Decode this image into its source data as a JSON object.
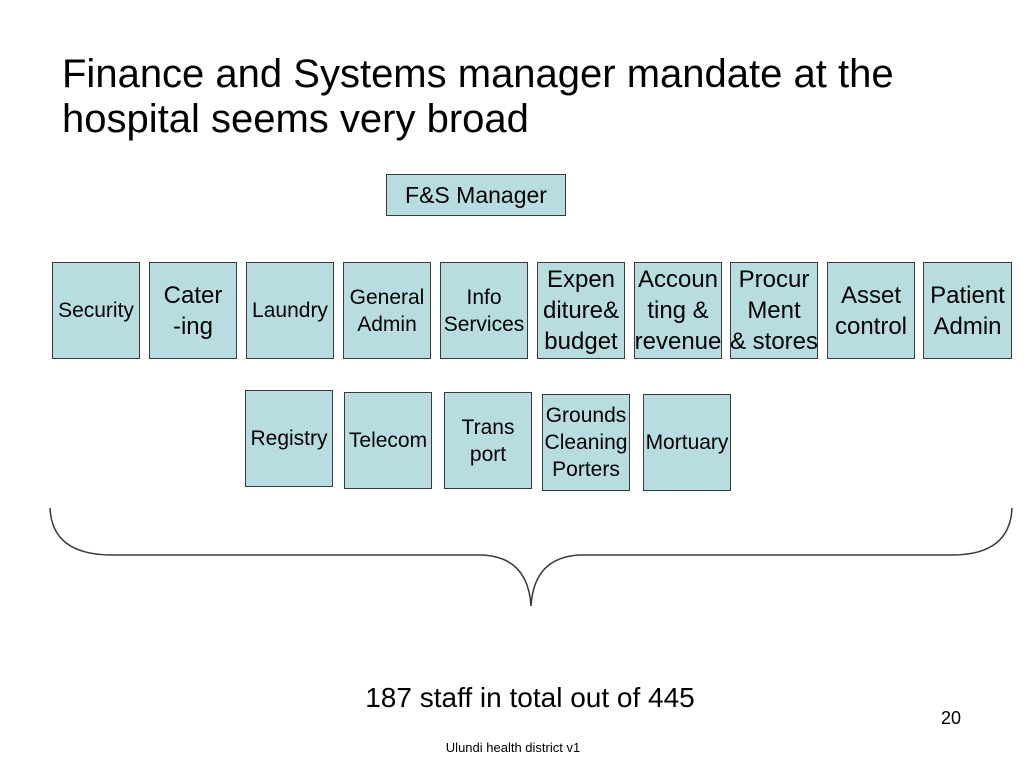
{
  "title": "Finance and Systems manager mandate at the hospital seems very broad",
  "manager": {
    "label": "F&S Manager"
  },
  "row1": [
    {
      "lines": [
        "Security"
      ]
    },
    {
      "lines": [
        "Cater",
        "-ing"
      ]
    },
    {
      "lines": [
        "Laundry"
      ]
    },
    {
      "lines": [
        "General",
        "Admin"
      ]
    },
    {
      "lines": [
        "Info",
        "Services"
      ]
    },
    {
      "lines": [
        "Expen",
        "diture&",
        "budget"
      ]
    },
    {
      "lines": [
        "Accoun",
        "ting &",
        "revenue"
      ]
    },
    {
      "lines": [
        "Procur",
        "Ment",
        "& stores"
      ]
    },
    {
      "lines": [
        "Asset",
        "control"
      ]
    },
    {
      "lines": [
        "Patient",
        "Admin"
      ]
    }
  ],
  "row2": [
    {
      "lines": [
        "Registry"
      ]
    },
    {
      "lines": [
        "Telecom"
      ]
    },
    {
      "lines": [
        "Trans",
        "port"
      ]
    },
    {
      "lines": [
        "Grounds",
        "Cleaning",
        "Porters"
      ]
    },
    {
      "lines": [
        "Mortuary"
      ]
    }
  ],
  "summary": "187 staff in total out of 445",
  "slide_number": "20",
  "footer": "Ulundi health district v1",
  "colors": {
    "background": "#ffffff",
    "box_fill": "#b7dde1",
    "box_border": "#3a3a3a",
    "text": "#000000",
    "brace": "#3a3a3a"
  }
}
